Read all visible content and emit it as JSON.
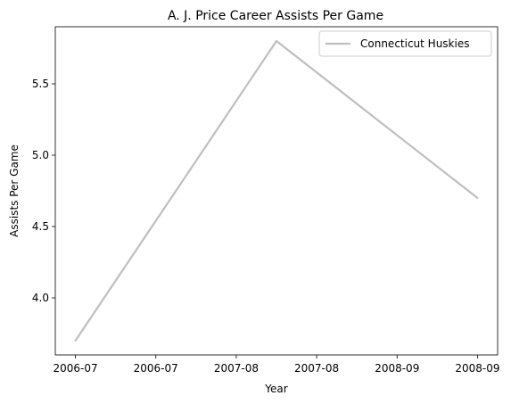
{
  "chart_data": {
    "type": "line",
    "title": "A. J. Price Career Assists Per Game",
    "xlabel": "Year",
    "ylabel": "Assists Per Game",
    "x": [
      "2006-07",
      "2007-08",
      "2008-09"
    ],
    "x_tick_labels": [
      "2006-07",
      "2006-07",
      "2007-08",
      "2007-08",
      "2008-09",
      "2008-09"
    ],
    "ylim": [
      3.6,
      5.9
    ],
    "y_ticks": [
      4.0,
      4.5,
      5.0,
      5.5
    ],
    "y_tick_labels": [
      "4.0",
      "4.5",
      "5.0",
      "5.5"
    ],
    "series": [
      {
        "name": "Connecticut Huskies",
        "values": [
          3.7,
          5.8,
          4.7
        ],
        "color": "#bfbfbf"
      }
    ],
    "legend": "top-right",
    "grid": false
  }
}
